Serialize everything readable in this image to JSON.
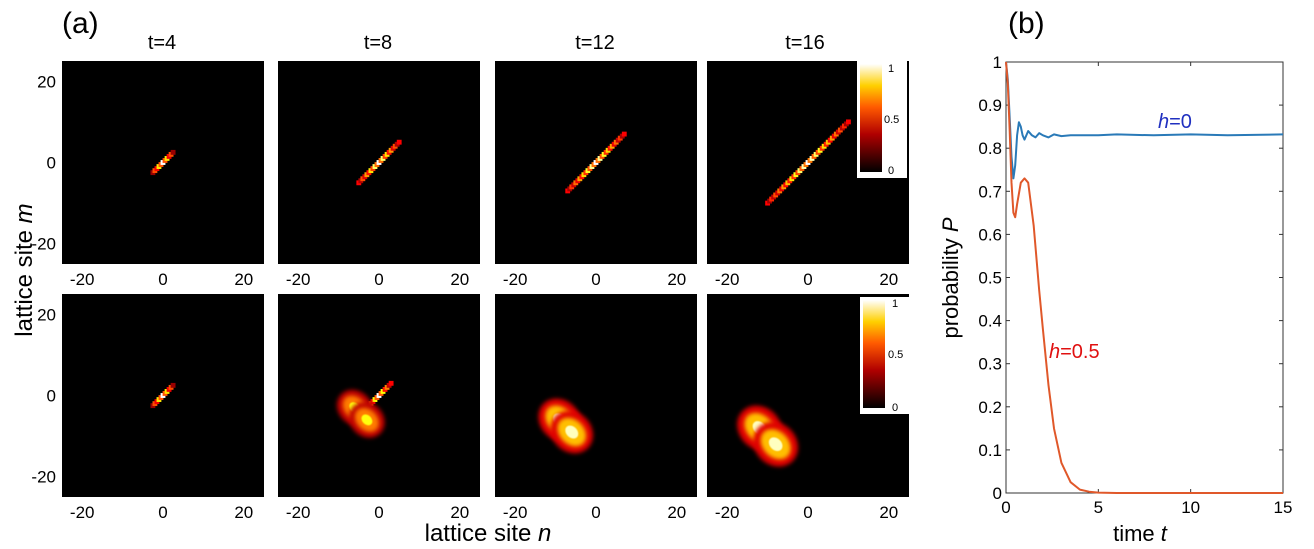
{
  "panel_a": {
    "label": "(a)",
    "column_titles": [
      "t=4",
      "t=8",
      "t=12",
      "t=16"
    ],
    "ylabel": "lattice site",
    "ylabel_var": "m",
    "xlabel": "lattice site",
    "xlabel_var": "n",
    "axis_ticks": [
      "-20",
      "0",
      "20"
    ],
    "colorbar_ticks": [
      "1",
      "0.5",
      "0"
    ]
  },
  "panel_b": {
    "label": "(b)",
    "ylabel": "probability",
    "ylabel_var": "P",
    "xlabel": "time",
    "xlabel_var": "t",
    "series_labels": [
      {
        "var": "h",
        "text": "=0",
        "color": "#2030c0"
      },
      {
        "var": "h",
        "text": "=0.5",
        "color": "#e01010"
      }
    ]
  },
  "chart_data": [
    {
      "type": "heatmap",
      "title": "",
      "xlabel": "lattice site n",
      "ylabel": "lattice site m",
      "xlim": [
        -25,
        25
      ],
      "ylim": [
        -25,
        25
      ],
      "x_ticks": [
        -20,
        0,
        20
      ],
      "y_ticks": [
        -20,
        0,
        20
      ],
      "colormap": "hot",
      "color_range": [
        0,
        1
      ],
      "rows": [
        {
          "name": "h=0",
          "panels": [
            {
              "t": 4,
              "blobs": [
                {
                  "n": 0,
                  "m": 0,
                  "len": 2.5,
                  "width": 0.35,
                  "dir": "diagonal",
                  "peak": 1.0
                }
              ]
            },
            {
              "t": 8,
              "blobs": [
                {
                  "n": 0,
                  "m": 0,
                  "len": 5,
                  "width": 0.35,
                  "dir": "diagonal",
                  "peak": 1.0
                }
              ]
            },
            {
              "t": 12,
              "blobs": [
                {
                  "n": 0,
                  "m": 0,
                  "len": 7,
                  "width": 0.35,
                  "dir": "diagonal",
                  "peak": 1.0
                }
              ]
            },
            {
              "t": 16,
              "blobs": [
                {
                  "n": 0,
                  "m": 0,
                  "len": 10,
                  "width": 0.35,
                  "dir": "diagonal",
                  "peak": 1.0
                }
              ]
            }
          ]
        },
        {
          "name": "h=0.5",
          "panels": [
            {
              "t": 4,
              "blobs": [
                {
                  "n": 0,
                  "m": 0,
                  "len": 2.5,
                  "width": 0.35,
                  "dir": "diagonal",
                  "peak": 1.0
                }
              ]
            },
            {
              "t": 8,
              "blobs": [
                {
                  "n": 0,
                  "m": 0,
                  "len": 3,
                  "width": 0.35,
                  "dir": "diagonal",
                  "peak": 1.0
                },
                {
                  "n": -6,
                  "m": -3,
                  "len": 1.8,
                  "width": 1.6,
                  "dir": "round",
                  "peak": 0.85
                },
                {
                  "n": -3,
                  "m": -6,
                  "len": 1.8,
                  "width": 1.6,
                  "dir": "round",
                  "peak": 0.85
                }
              ]
            },
            {
              "t": 12,
              "blobs": [
                {
                  "n": -9,
                  "m": -6,
                  "len": 2.0,
                  "width": 1.9,
                  "dir": "round",
                  "peak": 1.0
                },
                {
                  "n": -6,
                  "m": -9,
                  "len": 2.0,
                  "width": 1.9,
                  "dir": "round",
                  "peak": 1.0
                }
              ]
            },
            {
              "t": 16,
              "blobs": [
                {
                  "n": -12,
                  "m": -8,
                  "len": 2.2,
                  "width": 2.0,
                  "dir": "round",
                  "peak": 1.0
                },
                {
                  "n": -8,
                  "m": -12,
                  "len": 2.2,
                  "width": 2.0,
                  "dir": "round",
                  "peak": 1.0
                }
              ]
            }
          ]
        }
      ]
    },
    {
      "type": "line",
      "title": "",
      "xlabel": "time t",
      "ylabel": "probability P",
      "xlim": [
        0,
        15
      ],
      "ylim": [
        0,
        1
      ],
      "x_ticks": [
        0,
        5,
        10,
        15
      ],
      "y_ticks": [
        0,
        0.1,
        0.2,
        0.3,
        0.4,
        0.5,
        0.6,
        0.7,
        0.8,
        0.9,
        1
      ],
      "grid": false,
      "series": [
        {
          "name": "h=0",
          "color": "#2a7ab8",
          "x": [
            0,
            0.1,
            0.2,
            0.3,
            0.4,
            0.5,
            0.6,
            0.7,
            0.8,
            0.9,
            1.0,
            1.2,
            1.4,
            1.6,
            1.8,
            2.0,
            2.3,
            2.6,
            3.0,
            3.5,
            4.0,
            5.0,
            6.0,
            8.0,
            10.0,
            12.0,
            15.0
          ],
          "y": [
            1.0,
            0.96,
            0.87,
            0.78,
            0.73,
            0.76,
            0.83,
            0.86,
            0.85,
            0.83,
            0.82,
            0.84,
            0.83,
            0.825,
            0.835,
            0.83,
            0.825,
            0.832,
            0.828,
            0.83,
            0.83,
            0.83,
            0.832,
            0.83,
            0.832,
            0.83,
            0.832
          ]
        },
        {
          "name": "h=0.5",
          "color": "#e0582a",
          "x": [
            0,
            0.1,
            0.2,
            0.3,
            0.4,
            0.5,
            0.6,
            0.8,
            1.0,
            1.2,
            1.5,
            1.8,
            2.0,
            2.3,
            2.6,
            3.0,
            3.5,
            4.0,
            4.5,
            5.0,
            6.0,
            8.0,
            10.0,
            15.0
          ],
          "y": [
            1.0,
            0.95,
            0.84,
            0.72,
            0.65,
            0.64,
            0.67,
            0.72,
            0.73,
            0.72,
            0.62,
            0.47,
            0.38,
            0.25,
            0.15,
            0.07,
            0.025,
            0.008,
            0.003,
            0.001,
            0.0,
            0.0,
            0.0,
            0.0
          ]
        }
      ]
    }
  ]
}
